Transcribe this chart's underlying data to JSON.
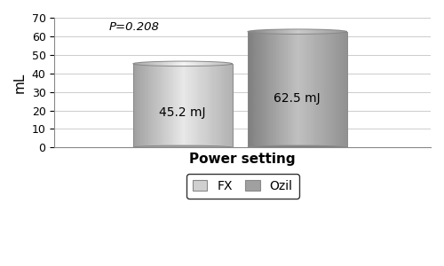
{
  "categories": [
    "FX",
    "Ozil"
  ],
  "values": [
    45.2,
    62.5
  ],
  "labels": [
    "45.2 mJ",
    "62.5 mJ"
  ],
  "bar_color_fx_left": "#a0a0a0",
  "bar_color_fx_center": "#e8e8e8",
  "bar_color_fx_right": "#b0b0b0",
  "bar_color_fx_top": "#d0d0d0",
  "bar_color_ozil_left": "#808080",
  "bar_color_ozil_center": "#c0c0c0",
  "bar_color_ozil_right": "#909090",
  "bar_color_ozil_top": "#aaaaaa",
  "xlabel": "Power setting",
  "ylabel": "mL",
  "ylim": [
    0,
    70
  ],
  "yticks": [
    0,
    10,
    20,
    30,
    40,
    50,
    60,
    70
  ],
  "p_value": "P=0.208",
  "legend_labels": [
    "FX",
    "Ozil"
  ],
  "legend_colors": [
    "#d0d0d0",
    "#a0a0a0"
  ],
  "background_color": "#ffffff",
  "grid_color": "#cccccc"
}
